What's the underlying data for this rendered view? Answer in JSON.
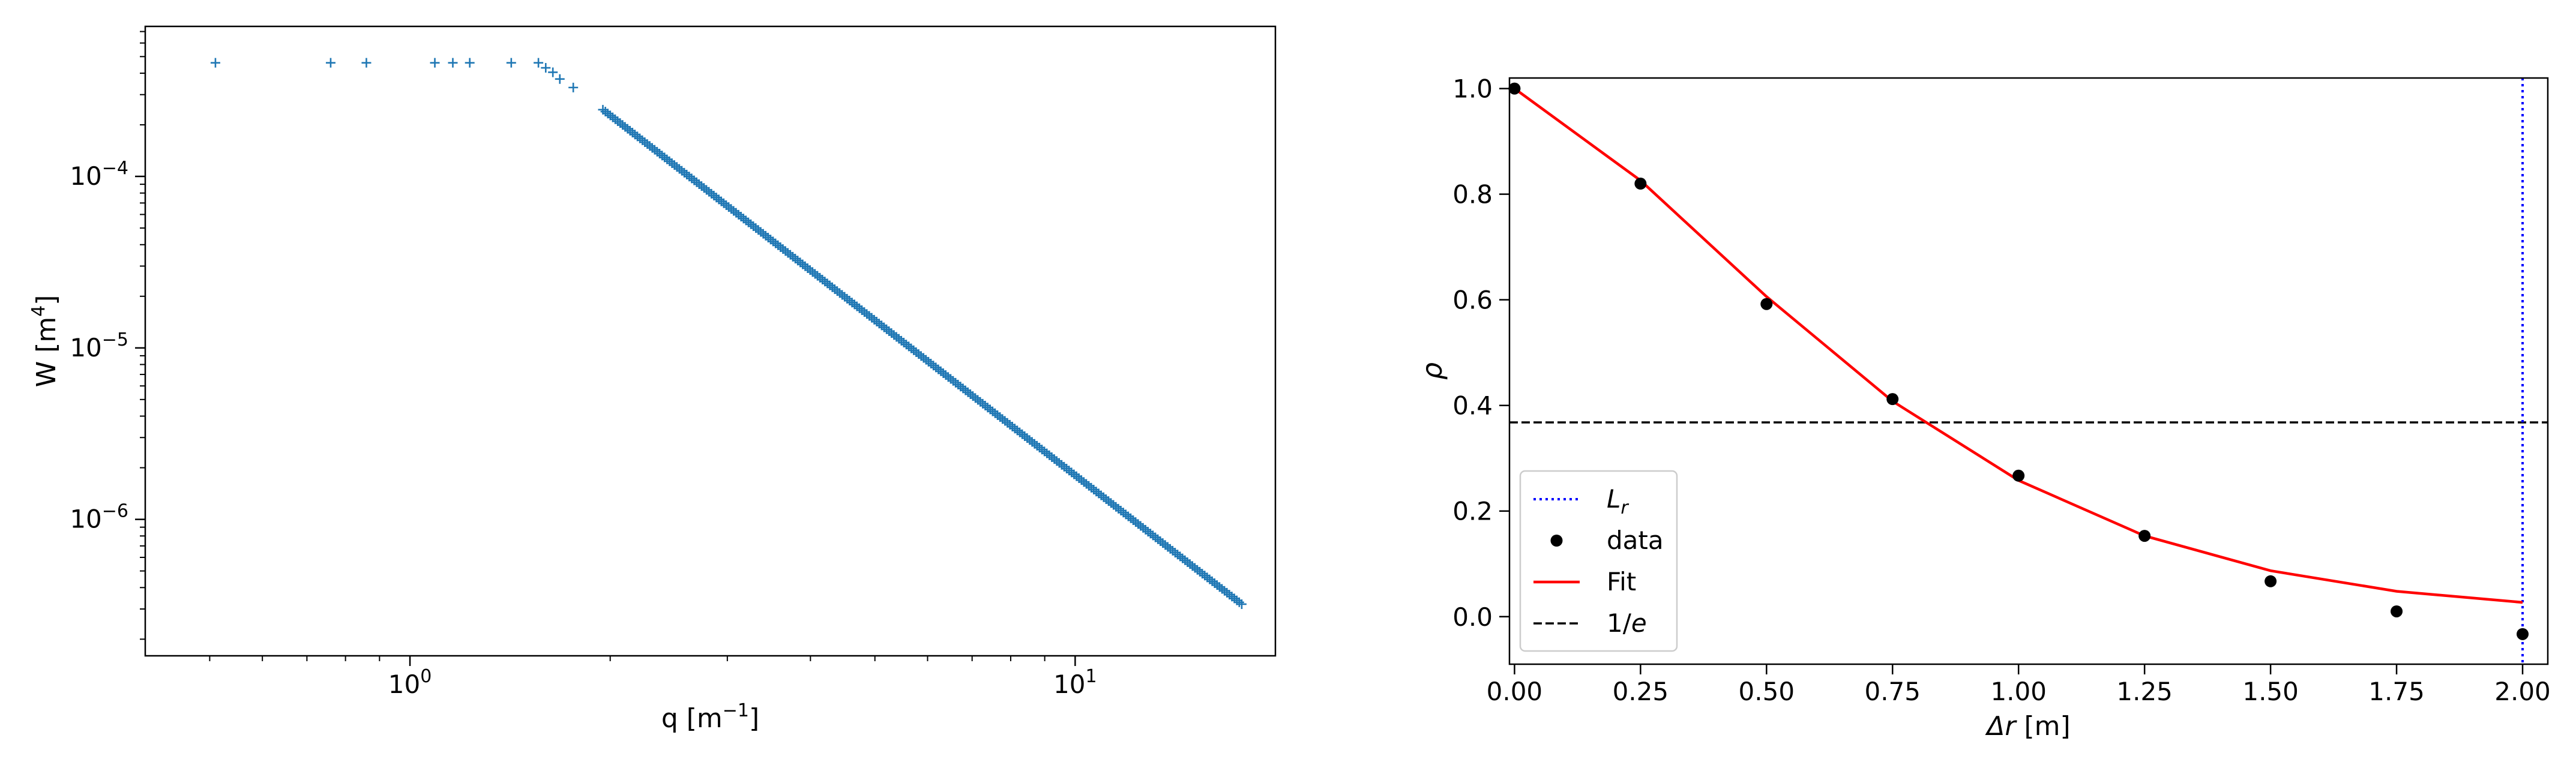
{
  "chart_data": [
    {
      "type": "scatter",
      "xscale": "log",
      "yscale": "log",
      "xlim": [
        0.4,
        20
      ],
      "ylim": [
        1.6e-07,
        0.00075
      ],
      "xlabel_base": "q [m",
      "xlabel_sup": "−1",
      "xlabel_end": "]",
      "ylabel_base": "W [m",
      "ylabel_sup": "4",
      "ylabel_end": "]",
      "xticks": [
        {
          "value": 1,
          "base": "10",
          "exp": "0"
        },
        {
          "value": 10,
          "base": "10",
          "exp": "1"
        }
      ],
      "yticks": [
        {
          "value": 1e-06,
          "base": "10",
          "exp": "−6"
        },
        {
          "value": 1e-05,
          "base": "10",
          "exp": "−5"
        },
        {
          "value": 0.0001,
          "base": "10",
          "exp": "−4"
        }
      ],
      "marker": "+",
      "color": "#1f77b4",
      "series": [
        {
          "x": [
            0.51,
            0.76,
            0.86,
            1.09,
            1.16,
            1.23,
            1.42,
            1.56,
            1.6,
            1.64,
            1.68,
            1.76
          ],
          "y": [
            0.00046,
            0.00046,
            0.00046,
            0.00046,
            0.00046,
            0.00046,
            0.00046,
            0.00046,
            0.00043,
            0.000405,
            0.00037,
            0.00033
          ]
        },
        {
          "powerlaw": {
            "x_start": 1.95,
            "x_end": 17.8,
            "n": 260,
            "y_at_x_start": 0.000245,
            "y_at_x_end": 3.2e-07
          }
        }
      ]
    },
    {
      "type": "line",
      "xlim": [
        -0.01,
        2.05
      ],
      "ylim": [
        -0.09,
        1.02
      ],
      "xlabel": "Δr [m]",
      "ylabel": "ρ",
      "xticks": [
        "0.00",
        "0.25",
        "0.50",
        "0.75",
        "1.00",
        "1.25",
        "1.50",
        "1.75",
        "2.00"
      ],
      "yticks": [
        "0.0",
        "0.2",
        "0.4",
        "0.6",
        "0.8",
        "1.0"
      ],
      "series": [
        {
          "name": "data",
          "style": "points",
          "color": "#000000",
          "x": [
            0.0,
            0.25,
            0.5,
            0.75,
            1.0,
            1.25,
            1.5,
            1.75,
            2.0
          ],
          "y": [
            1.0,
            0.82,
            0.592,
            0.412,
            0.267,
            0.153,
            0.067,
            0.01,
            -0.033
          ]
        },
        {
          "name": "Fit",
          "style": "line",
          "color": "#ff0000",
          "x": [
            0.0,
            0.25,
            0.5,
            0.75,
            1.0,
            1.25,
            1.5,
            1.75,
            2.0
          ],
          "y": [
            1.0,
            0.826,
            0.606,
            0.408,
            0.258,
            0.153,
            0.087,
            0.048,
            0.027
          ]
        },
        {
          "name": "1/e",
          "style": "hline",
          "color": "#000000",
          "y": 0.3679
        },
        {
          "name": "L_r",
          "style": "vline",
          "color": "#0000ff",
          "x": 2.0
        }
      ],
      "legend": {
        "position": "lower-left",
        "entries": [
          {
            "label": "L",
            "sub": "r",
            "italic": true
          },
          {
            "label": "data"
          },
          {
            "label": "Fit"
          },
          {
            "label": "1/e"
          }
        ]
      }
    }
  ]
}
